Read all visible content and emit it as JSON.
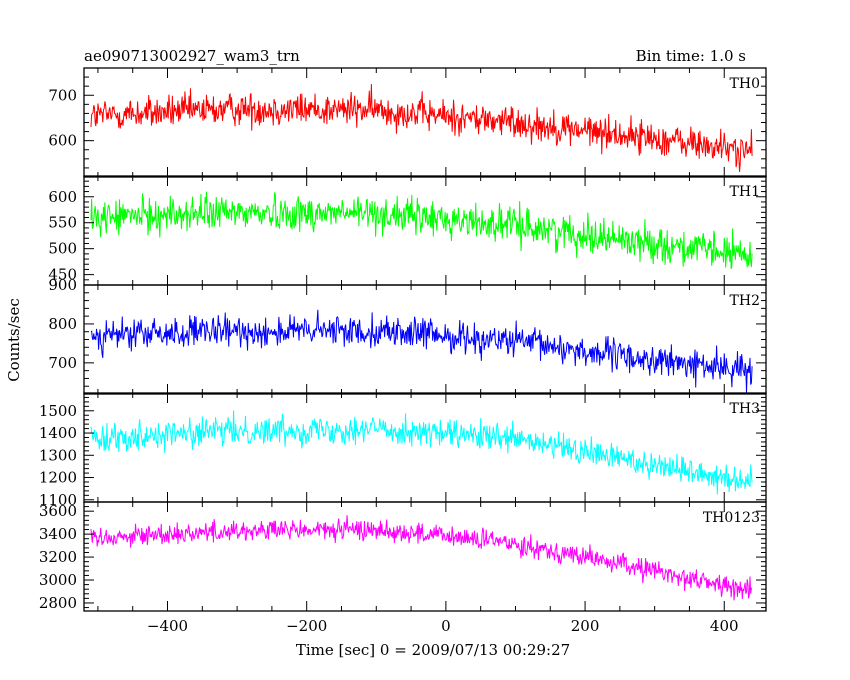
{
  "header": {
    "left_title": "ae090713002927_wam3_trn",
    "right_title": "Bin time: 1.0 s"
  },
  "axes": {
    "xlabel": "Time [sec] 0 = 2009/07/13 00:29:27",
    "ylabel": "Counts/sec"
  },
  "chart_data": {
    "type": "line",
    "title": "ae090713002927_wam3_trn",
    "subtitle": "Bin time: 1.0 s",
    "xlabel": "Time [sec] 0 = 2009/07/13 00:29:27",
    "ylabel": "Counts/sec",
    "x_range": [
      -510,
      440
    ],
    "xlim": [
      -520,
      460
    ],
    "xticks": [
      -400,
      -200,
      0,
      200,
      400
    ],
    "bin_time_s": 1.0,
    "panels": [
      {
        "name": "TH0",
        "color": "#ff0000",
        "ylim": [
          520,
          760
        ],
        "yticks": [
          600,
          700
        ],
        "trend_x": [
          -510,
          -300,
          -100,
          100,
          300,
          440
        ],
        "trend_y": [
          655,
          670,
          668,
          640,
          605,
          575
        ],
        "noise": 26
      },
      {
        "name": "TH1",
        "color": "#00ff00",
        "ylim": [
          430,
          640
        ],
        "yticks": [
          450,
          500,
          550,
          600
        ],
        "trend_x": [
          -510,
          -300,
          -100,
          100,
          300,
          440
        ],
        "trend_y": [
          560,
          570,
          568,
          545,
          510,
          485
        ],
        "noise": 24
      },
      {
        "name": "TH2",
        "color": "#0000ff",
        "ylim": [
          620,
          900
        ],
        "yticks": [
          700,
          800,
          900
        ],
        "trend_x": [
          -510,
          -300,
          -100,
          100,
          300,
          440
        ],
        "trend_y": [
          770,
          780,
          783,
          755,
          705,
          680
        ],
        "noise": 28
      },
      {
        "name": "TH3",
        "color": "#00ffff",
        "ylim": [
          1090,
          1580
        ],
        "yticks": [
          1100,
          1200,
          1300,
          1400,
          1500
        ],
        "trend_x": [
          -510,
          -300,
          -100,
          100,
          300,
          440
        ],
        "trend_y": [
          1380,
          1410,
          1420,
          1370,
          1260,
          1180
        ],
        "noise": 45
      },
      {
        "name": "TH0123",
        "color": "#ff00ff",
        "ylim": [
          2730,
          3680
        ],
        "yticks": [
          2800,
          3000,
          3200,
          3400,
          3600
        ],
        "trend_x": [
          -510,
          -300,
          -100,
          100,
          300,
          440
        ],
        "trend_y": [
          3370,
          3430,
          3440,
          3320,
          3080,
          2900
        ],
        "noise": 65
      }
    ]
  }
}
